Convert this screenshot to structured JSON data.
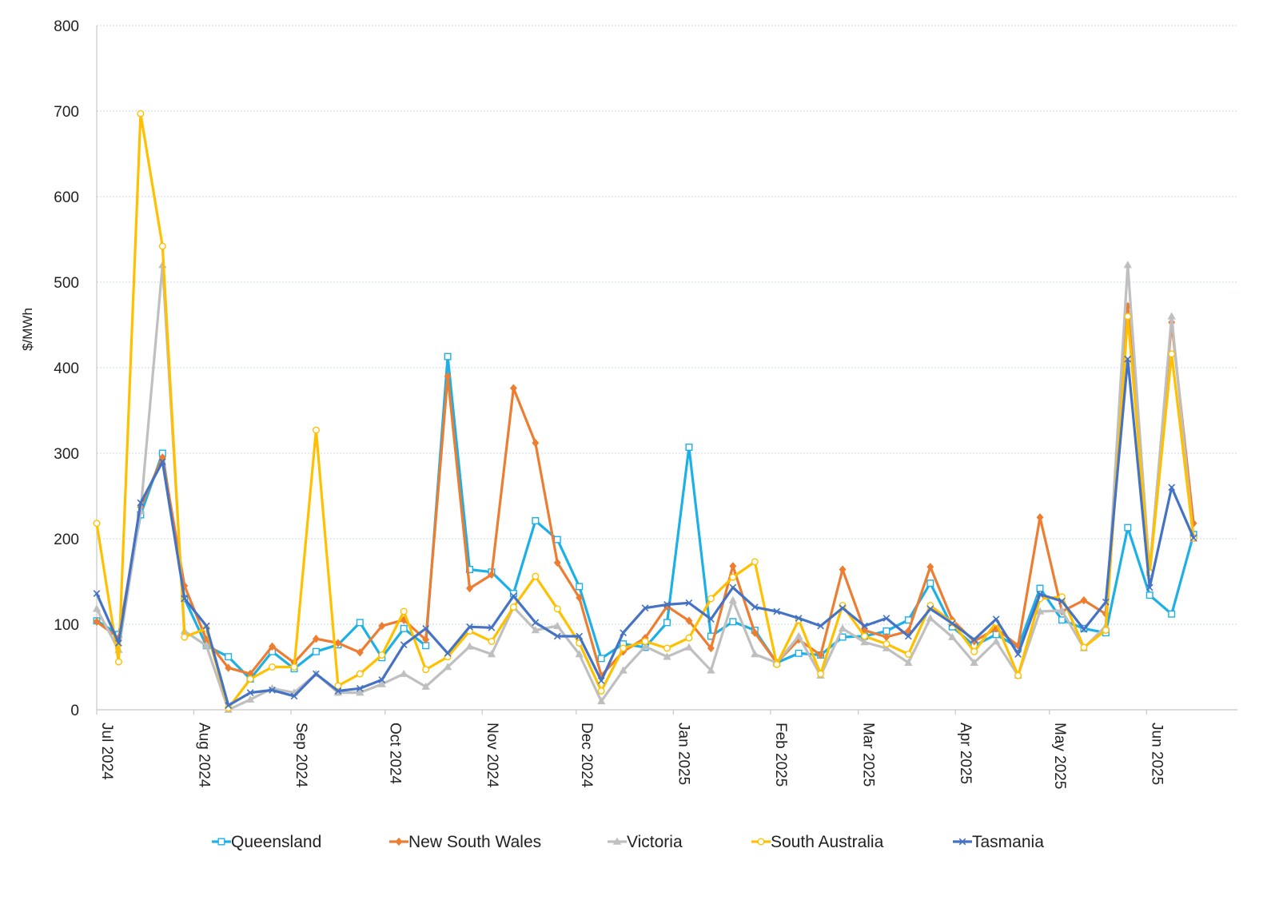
{
  "chart_data": {
    "type": "line",
    "title": "",
    "xlabel": "",
    "ylabel": "$/MWh",
    "ylim": [
      0,
      800
    ],
    "y_ticks": [
      0,
      100,
      200,
      300,
      400,
      500,
      600,
      700,
      800
    ],
    "x_range": [
      "2024-07-01",
      "2025-06-30"
    ],
    "x_tick_labels": [
      {
        "date": "2024-07-01",
        "label": "Jul 2024"
      },
      {
        "date": "2024-08-01",
        "label": "Aug 2024"
      },
      {
        "date": "2024-09-01",
        "label": "Sep 2024"
      },
      {
        "date": "2024-10-01",
        "label": "Oct 2024"
      },
      {
        "date": "2024-11-01",
        "label": "Nov 2024"
      },
      {
        "date": "2024-12-01",
        "label": "Dec 2024"
      },
      {
        "date": "2025-01-01",
        "label": "Jan 2025"
      },
      {
        "date": "2025-02-01",
        "label": "Feb 2025"
      },
      {
        "date": "2025-03-01",
        "label": "Mar 2025"
      },
      {
        "date": "2025-04-01",
        "label": "Apr 2025"
      },
      {
        "date": "2025-05-01",
        "label": "May 2025"
      },
      {
        "date": "2025-06-01",
        "label": "Jun 2025"
      }
    ],
    "grid": true,
    "legend_position": "bottom",
    "x": [
      "2024-07-01",
      "2024-07-08",
      "2024-07-15",
      "2024-07-22",
      "2024-07-29",
      "2024-08-05",
      "2024-08-12",
      "2024-08-19",
      "2024-08-26",
      "2024-09-02",
      "2024-09-09",
      "2024-09-16",
      "2024-09-23",
      "2024-09-30",
      "2024-10-07",
      "2024-10-14",
      "2024-10-21",
      "2024-10-28",
      "2024-11-04",
      "2024-11-11",
      "2024-11-18",
      "2024-11-25",
      "2024-12-02",
      "2024-12-09",
      "2024-12-16",
      "2024-12-23",
      "2024-12-30",
      "2025-01-06",
      "2025-01-13",
      "2025-01-20",
      "2025-01-27",
      "2025-02-03",
      "2025-02-10",
      "2025-02-17",
      "2025-02-24",
      "2025-03-03",
      "2025-03-10",
      "2025-03-17",
      "2025-03-24",
      "2025-03-31",
      "2025-04-07",
      "2025-04-14",
      "2025-04-21",
      "2025-04-28",
      "2025-05-05",
      "2025-05-12",
      "2025-05-19",
      "2025-05-26",
      "2025-06-02",
      "2025-06-09",
      "2025-06-16",
      "2025-06-23",
      "2025-06-30"
    ],
    "series": [
      {
        "name": "Queensland",
        "color": "#1db0e6",
        "marker": "square",
        "values": [
          104,
          88,
          228,
          300,
          130,
          75,
          62,
          36,
          68,
          48,
          68,
          76,
          102,
          61,
          95,
          75,
          413,
          164,
          161,
          136,
          221,
          199,
          144,
          60,
          77,
          73,
          102,
          307,
          86,
          103,
          93,
          55,
          66,
          64,
          85,
          86,
          92,
          105,
          148,
          97,
          75,
          88,
          73,
          142,
          105,
          95,
          90,
          213,
          134,
          112,
          205,
          null,
          null
        ]
      },
      {
        "name": "New South Wales",
        "color": "#ed7d31",
        "marker": "diamond",
        "values": [
          103,
          84,
          237,
          295,
          145,
          82,
          49,
          42,
          74,
          55,
          83,
          78,
          67,
          98,
          105,
          82,
          390,
          142,
          158,
          376,
          312,
          172,
          131,
          40,
          68,
          84,
          121,
          104,
          72,
          168,
          90,
          55,
          82,
          64,
          164,
          93,
          85,
          92,
          167,
          105,
          80,
          95,
          75,
          225,
          115,
          128,
          112,
          472,
          162,
          453,
          218,
          null,
          null
        ]
      },
      {
        "name": "Victoria",
        "color": "#bfbfbf",
        "marker": "triangle",
        "values": [
          118,
          70,
          232,
          520,
          92,
          75,
          0,
          12,
          25,
          20,
          42,
          20,
          20,
          30,
          42,
          27,
          50,
          74,
          65,
          120,
          93,
          98,
          65,
          10,
          46,
          74,
          62,
          73,
          46,
          128,
          65,
          55,
          86,
          40,
          95,
          79,
          72,
          55,
          107,
          85,
          55,
          80,
          40,
          115,
          116,
          72,
          98,
          520,
          160,
          460,
          200,
          null,
          null
        ]
      },
      {
        "name": "South Australia",
        "color": "#ffc000",
        "marker": "circle",
        "values": [
          218,
          56,
          697,
          542,
          85,
          95,
          2,
          36,
          50,
          50,
          327,
          28,
          42,
          64,
          115,
          47,
          62,
          92,
          80,
          120,
          156,
          118,
          78,
          22,
          72,
          80,
          72,
          84,
          130,
          155,
          173,
          53,
          105,
          42,
          122,
          86,
          77,
          65,
          122,
          102,
          68,
          102,
          40,
          130,
          132,
          73,
          93,
          460,
          160,
          416,
          201,
          null,
          null
        ]
      },
      {
        "name": "Tasmania",
        "color": "#4472c4",
        "marker": "x",
        "values": [
          136,
          78,
          242,
          290,
          130,
          98,
          5,
          20,
          23,
          16,
          42,
          22,
          25,
          35,
          76,
          95,
          66,
          97,
          96,
          133,
          102,
          86,
          86,
          34,
          90,
          119,
          123,
          125,
          106,
          143,
          120,
          115,
          107,
          98,
          119,
          98,
          107,
          86,
          118,
          101,
          82,
          106,
          65,
          135,
          127,
          94,
          126,
          410,
          143,
          260,
          201,
          null,
          null
        ]
      }
    ]
  }
}
